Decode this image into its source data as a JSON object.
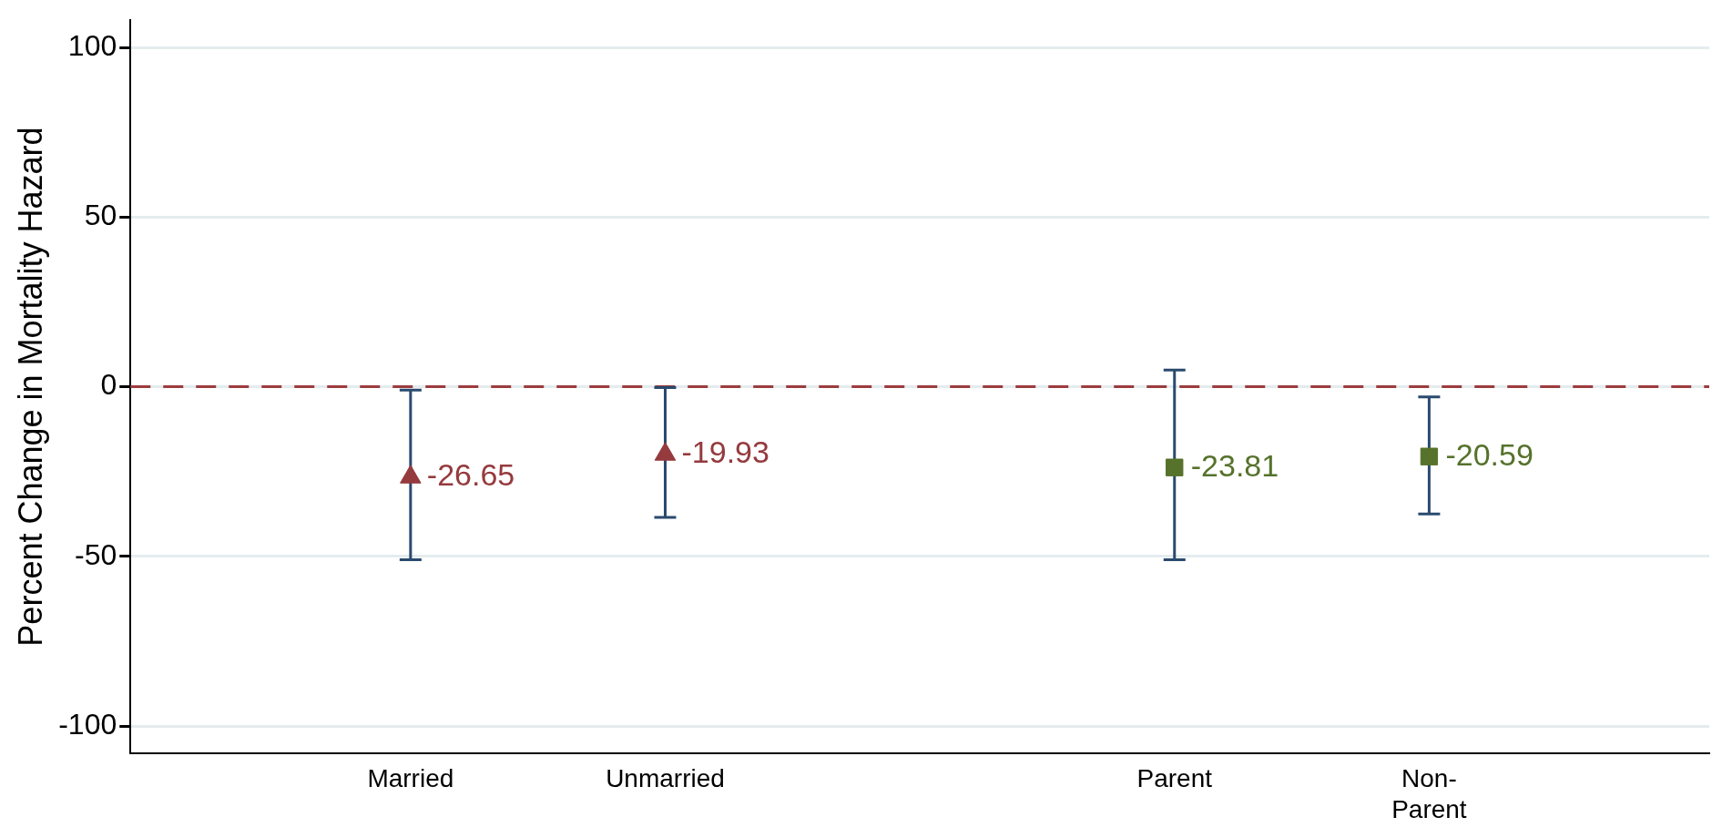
{
  "chart_data": {
    "type": "scatter",
    "ylabel": "Percent Change in Mortality Hazard",
    "categories": [
      "Married",
      "Unmarried",
      null,
      "Parent",
      "Non-Parent"
    ],
    "series": [
      {
        "color": "#953a3d",
        "marker": "triangle",
        "values": [
          -26.65,
          -19.93,
          null,
          null,
          null
        ],
        "errors": [
          [
            -51,
            -1
          ],
          [
            -38.5,
            -0.3
          ],
          null,
          null,
          null
        ]
      },
      {
        "color": "#56722b",
        "marker": "square",
        "values": [
          null,
          null,
          null,
          -23.81,
          -20.59
        ],
        "errors": [
          null,
          null,
          null,
          [
            -51,
            4.9
          ],
          [
            -37.5,
            -3
          ]
        ]
      }
    ],
    "data_labels": true,
    "ref_lines": [
      {
        "axis": "y",
        "value": 0,
        "color": "#9b3c3e",
        "line_style": "dashed"
      }
    ],
    "ylim": [
      -108,
      108
    ],
    "yticks": [
      -100,
      -50,
      0,
      50,
      100
    ],
    "grid": "y",
    "legend": false
  }
}
